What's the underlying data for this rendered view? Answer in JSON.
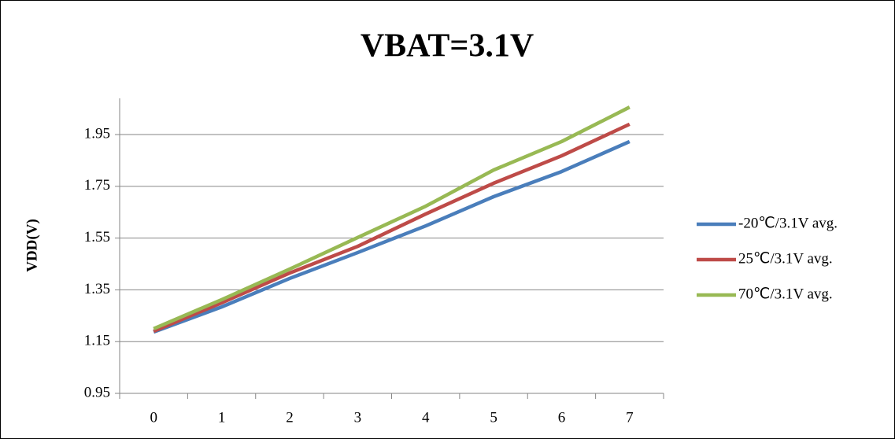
{
  "chart_data": {
    "type": "line",
    "title": "VBAT=3.1V",
    "y_label": "VDD(V)",
    "categories": [
      "0",
      "1",
      "2",
      "3",
      "4",
      "5",
      "6",
      "7"
    ],
    "series": [
      {
        "name": "-20℃/3.1V avg.",
        "color": "#4a7ebb",
        "values": [
          1.187,
          1.284,
          1.394,
          1.494,
          1.597,
          1.71,
          1.807,
          1.923
        ]
      },
      {
        "name": "25℃/3.1V avg.",
        "color": "#be4b48",
        "values": [
          1.19,
          1.3,
          1.415,
          1.518,
          1.643,
          1.762,
          1.868,
          1.99
        ]
      },
      {
        "name": "70℃/3.1V avg.",
        "color": "#98b954",
        "values": [
          1.2,
          1.312,
          1.43,
          1.552,
          1.673,
          1.813,
          1.923,
          2.056
        ]
      }
    ],
    "ylim": [
      0.95,
      2.09
    ],
    "yticks": [
      0.95,
      1.15,
      1.35,
      1.55,
      1.75,
      1.95
    ],
    "grid": true,
    "legend": "right"
  }
}
